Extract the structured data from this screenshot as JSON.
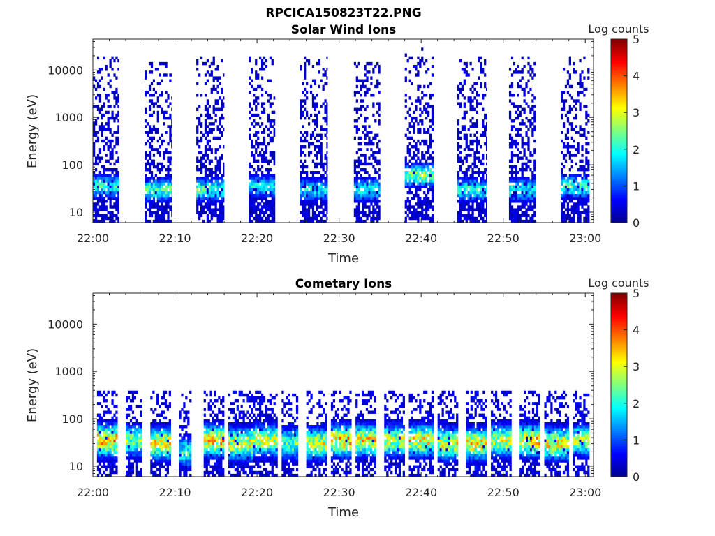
{
  "figure": {
    "title": "RPCICA150823T22.PNG"
  },
  "colors": {
    "colormap": [
      "#00008f",
      "#0000ff",
      "#0080ff",
      "#00ffff",
      "#80ff80",
      "#ffff00",
      "#ff8000",
      "#ff0000",
      "#800000"
    ],
    "background": "#ffffff",
    "axis": "#262626"
  },
  "chart_data": [
    {
      "type": "heatmap",
      "title": "Solar Wind Ions",
      "xlabel": "Time",
      "ylabel": "Energy (eV)",
      "x_ticks": [
        "22:00",
        "22:10",
        "22:20",
        "22:30",
        "22:40",
        "22:50",
        "23:00"
      ],
      "x_range_minutes": [
        0,
        61
      ],
      "y_ticks": [
        "10",
        "100",
        "1000",
        "10000"
      ],
      "y_scale": "log",
      "y_range_eV": [
        6,
        45000
      ],
      "colorbar": {
        "label": "Log counts",
        "ticks": [
          "0",
          "1",
          "2",
          "3",
          "4",
          "5"
        ],
        "range": [
          0,
          5
        ]
      },
      "pulses": [
        {
          "start": 0.0,
          "end": 3.2,
          "peak_eV": 35,
          "peak_log": 2.3,
          "top_eV": 20000
        },
        {
          "start": 6.3,
          "end": 9.6,
          "peak_eV": 30,
          "peak_log": 2.4,
          "top_eV": 15000
        },
        {
          "start": 12.6,
          "end": 16.0,
          "peak_eV": 30,
          "peak_log": 2.4,
          "top_eV": 20000
        },
        {
          "start": 19.0,
          "end": 22.2,
          "peak_eV": 35,
          "peak_log": 2.0,
          "top_eV": 20000
        },
        {
          "start": 25.2,
          "end": 28.6,
          "peak_eV": 30,
          "peak_log": 2.0,
          "top_eV": 20000
        },
        {
          "start": 31.8,
          "end": 35.0,
          "peak_eV": 30,
          "peak_log": 2.2,
          "top_eV": 15000
        },
        {
          "start": 38.0,
          "end": 41.5,
          "peak_eV": 60,
          "peak_log": 2.9,
          "top_eV": 30000
        },
        {
          "start": 44.4,
          "end": 48.0,
          "peak_eV": 30,
          "peak_log": 2.3,
          "top_eV": 20000
        },
        {
          "start": 50.7,
          "end": 54.0,
          "peak_eV": 30,
          "peak_log": 2.2,
          "top_eV": 20000
        },
        {
          "start": 57.0,
          "end": 60.5,
          "peak_eV": 35,
          "peak_log": 2.4,
          "top_eV": 20000
        }
      ]
    },
    {
      "type": "heatmap",
      "title": "Cometary Ions",
      "xlabel": "Time",
      "ylabel": "Energy (eV)",
      "x_ticks": [
        "22:00",
        "22:10",
        "22:20",
        "22:30",
        "22:40",
        "22:50",
        "23:00"
      ],
      "x_range_minutes": [
        0,
        61
      ],
      "y_ticks": [
        "10",
        "100",
        "1000",
        "10000"
      ],
      "y_scale": "log",
      "y_range_eV": [
        6,
        45000
      ],
      "colorbar": {
        "label": "Log counts",
        "ticks": [
          "0",
          "1",
          "2",
          "3",
          "4",
          "5"
        ],
        "range": [
          0,
          5
        ]
      },
      "pulses": [
        {
          "start": 0.5,
          "end": 3.0,
          "peak_eV": 35,
          "peak_log": 4.2
        },
        {
          "start": 4.0,
          "end": 6.0,
          "peak_eV": 35,
          "peak_log": 3.0
        },
        {
          "start": 7.0,
          "end": 9.5,
          "peak_eV": 30,
          "peak_log": 3.8
        },
        {
          "start": 10.5,
          "end": 12.0,
          "peak_eV": 20,
          "peak_log": 2.5
        },
        {
          "start": 13.5,
          "end": 16.0,
          "peak_eV": 35,
          "peak_log": 4.0
        },
        {
          "start": 16.5,
          "end": 19.5,
          "peak_eV": 30,
          "peak_log": 3.6
        },
        {
          "start": 19.5,
          "end": 22.5,
          "peak_eV": 35,
          "peak_log": 3.5
        },
        {
          "start": 23.0,
          "end": 25.0,
          "peak_eV": 30,
          "peak_log": 2.8
        },
        {
          "start": 26.0,
          "end": 28.5,
          "peak_eV": 30,
          "peak_log": 3.5
        },
        {
          "start": 29.0,
          "end": 31.5,
          "peak_eV": 35,
          "peak_log": 4.0
        },
        {
          "start": 32.0,
          "end": 34.5,
          "peak_eV": 35,
          "peak_log": 3.8
        },
        {
          "start": 35.5,
          "end": 38.0,
          "peak_eV": 35,
          "peak_log": 3.4
        },
        {
          "start": 38.5,
          "end": 41.5,
          "peak_eV": 35,
          "peak_log": 3.8
        },
        {
          "start": 42.0,
          "end": 44.5,
          "peak_eV": 30,
          "peak_log": 3.6
        },
        {
          "start": 45.5,
          "end": 48.0,
          "peak_eV": 30,
          "peak_log": 3.8
        },
        {
          "start": 48.5,
          "end": 51.0,
          "peak_eV": 35,
          "peak_log": 3.6
        },
        {
          "start": 52.0,
          "end": 54.5,
          "peak_eV": 35,
          "peak_log": 3.9
        },
        {
          "start": 55.0,
          "end": 58.0,
          "peak_eV": 30,
          "peak_log": 3.7
        },
        {
          "start": 58.5,
          "end": 60.5,
          "peak_eV": 35,
          "peak_log": 3.2
        }
      ]
    }
  ]
}
